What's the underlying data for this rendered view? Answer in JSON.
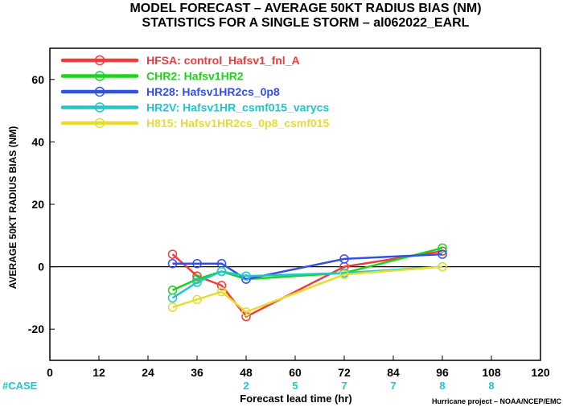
{
  "title_line1": "MODEL FORECAST – AVERAGE 50KT RADIUS BIAS (NM)",
  "title_line2": "STATISTICS FOR A SINGLE STORM – al062022_EARL",
  "ylabel": "AVERAGE 50KT RADIUS BIAS (NM)",
  "xlabel": "Forecast lead time (hr)",
  "case_label": "#CASE",
  "credit": "Hurricane project – NOAA/NCEP/EMC",
  "colors": {
    "HFSA": "#f03c3c",
    "CHR2": "#1ed21e",
    "HR28": "#3250e6",
    "HR2V": "#1ec8c8",
    "H815": "#e6dc32",
    "case": "#1ec8c8",
    "zero_line": "#000000"
  },
  "chart_data": {
    "type": "line",
    "xlim": [
      0,
      120
    ],
    "ylim": [
      -30,
      70
    ],
    "xticks": [
      0,
      12,
      24,
      36,
      48,
      60,
      72,
      84,
      96,
      108,
      120
    ],
    "yticks": [
      -20,
      0,
      20,
      40,
      60
    ],
    "grid": false,
    "legend_placement": "top-left",
    "series": [
      {
        "name": "HFSA: control_Hafsv1_fnl_A",
        "color_key": "HFSA",
        "x": [
          30,
          36,
          42,
          48,
          72,
          96
        ],
        "y": [
          4,
          -3,
          -6,
          -16,
          0,
          5
        ]
      },
      {
        "name": "CHR2: Hafsv1HR2",
        "color_key": "CHR2",
        "x": [
          30,
          36,
          42,
          48,
          72,
          96
        ],
        "y": [
          -7.5,
          -4,
          -1.5,
          -4,
          -2,
          6
        ]
      },
      {
        "name": "HR28: Hafsv1HR2cs_0p8",
        "color_key": "HR28",
        "x": [
          30,
          36,
          42,
          48,
          72,
          96
        ],
        "y": [
          1,
          1,
          1,
          -4,
          2.5,
          4
        ]
      },
      {
        "name": "HR2V: Hafsv1HR_csmf015_varycs",
        "color_key": "HR2V",
        "x": [
          30,
          36,
          42,
          48,
          72,
          96
        ],
        "y": [
          -10,
          -5,
          -1.5,
          -3,
          -2,
          0
        ]
      },
      {
        "name": "H815: Hafsv1HR2cs_0p8_csmf015",
        "color_key": "H815",
        "x": [
          30,
          36,
          42,
          48,
          72,
          96
        ],
        "y": [
          -13,
          -10.5,
          -8,
          -14.5,
          -2.5,
          0
        ]
      }
    ],
    "cases": [
      {
        "x": 48,
        "n": "2"
      },
      {
        "x": 60,
        "n": "5"
      },
      {
        "x": 72,
        "n": "7"
      },
      {
        "x": 84,
        "n": "7"
      },
      {
        "x": 96,
        "n": "8"
      },
      {
        "x": 108,
        "n": "8"
      }
    ]
  }
}
